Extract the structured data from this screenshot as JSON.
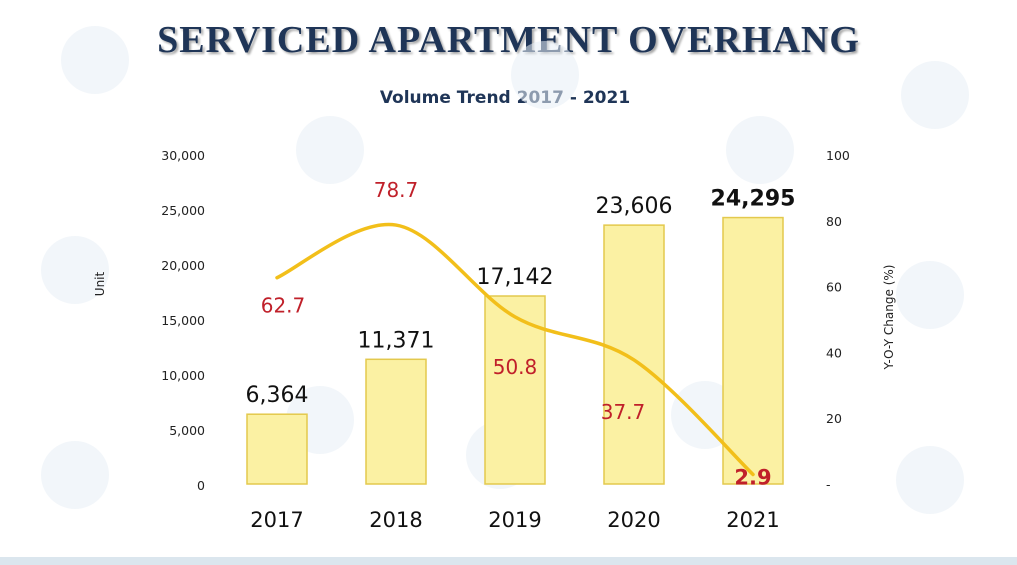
{
  "title": "SERVICED APARTMENT OVERHANG",
  "subtitle": "Volume Trend 2017 - 2021",
  "colors": {
    "title": "#1f3557",
    "bar_fill": "#fbf1a3",
    "bar_stroke": "#e3c94d",
    "line": "#f2bf1a",
    "yoy_label": "#c0202a"
  },
  "chart_data": {
    "type": "bar",
    "categories": [
      "2017",
      "2018",
      "2019",
      "2020",
      "2021"
    ],
    "series": [
      {
        "axis": "left",
        "values": [
          6364,
          11371,
          17142,
          23606,
          24295
        ],
        "labels": [
          "6,364",
          "11,371",
          "17,142",
          "23,606",
          "24,295"
        ]
      },
      {
        "type": "line",
        "axis": "right",
        "values": [
          62.7,
          78.7,
          50.8,
          37.7,
          2.9
        ],
        "labels": [
          "62.7",
          "78.7",
          "50.8",
          "37.7",
          "2.9"
        ]
      }
    ],
    "ylabel": "Unit",
    "ylabel_right": "Y-O-Y Change (%)",
    "ylim": [
      0,
      30000
    ],
    "ylim_right": [
      0,
      100
    ],
    "yticks": [
      "30,000",
      "25,000",
      "20,000",
      "15,000",
      "10,000",
      "5,000",
      "0"
    ],
    "yticks_right": [
      "100",
      "80",
      "60",
      "40",
      "20",
      "-"
    ],
    "grid": false,
    "legend": "none"
  }
}
